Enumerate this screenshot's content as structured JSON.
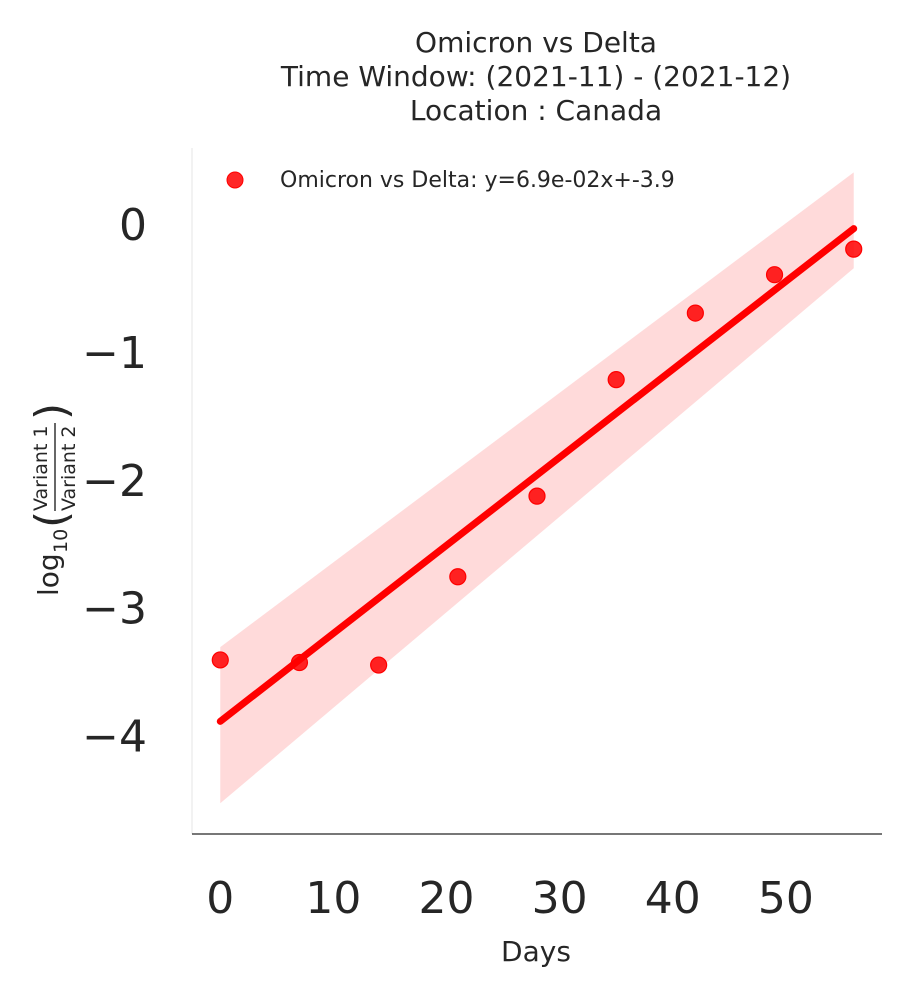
{
  "chart_data": {
    "type": "scatter",
    "title": [
      "Omicron vs Delta",
      "Time Window: (2021-11) - (2021-12)",
      "Location : Canada"
    ],
    "xlabel": "Days",
    "ylabel": {
      "log": "log",
      "base": "10",
      "numerator": "Variant 1",
      "denominator": "Variant 2"
    },
    "xlim": [
      -2.5,
      58.5
    ],
    "ylim": [
      -4.76,
      0.6
    ],
    "x_ticks": [
      0,
      10,
      20,
      30,
      40,
      50
    ],
    "x_tick_labels": [
      "0",
      "10",
      "20",
      "30",
      "40",
      "50"
    ],
    "y_ticks": [
      0,
      -1,
      -2,
      -3,
      -4
    ],
    "y_tick_labels": [
      "0",
      "−1",
      "−2",
      "−3",
      "−4"
    ],
    "grid": false,
    "legend_position": "top-left",
    "series": [
      {
        "name": "Omicron vs Delta: y=6.9e-02x+-3.9",
        "x": [
          0,
          7,
          14,
          21,
          28,
          35,
          42,
          49,
          56
        ],
        "y": [
          -3.4,
          -3.42,
          -3.44,
          -2.75,
          -2.12,
          -1.21,
          -0.69,
          -0.39,
          -0.19
        ]
      }
    ],
    "regression": {
      "x": [
        0,
        56
      ],
      "y": [
        -3.88,
        -0.03
      ],
      "ci_upper": [
        -3.3,
        0.41
      ],
      "ci_lower": [
        -4.52,
        -0.34
      ]
    },
    "colors": {
      "points": "#ff0000",
      "line": "#ff0000",
      "band": "#ffd6d6",
      "text": "#262626",
      "axis": "#262626"
    }
  }
}
